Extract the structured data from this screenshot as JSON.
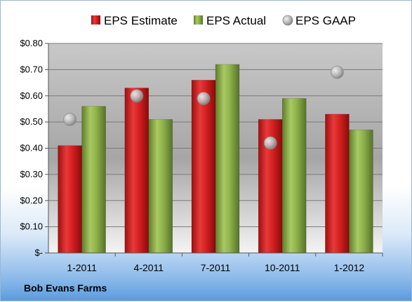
{
  "company": "Bob Evans Farms",
  "chart_data": {
    "type": "bar",
    "title": "",
    "xlabel": "",
    "ylabel": "",
    "categories": [
      "1-2011",
      "4-2011",
      "7-2011",
      "10-2011",
      "1-2012"
    ],
    "series": [
      {
        "name": "EPS Estimate",
        "kind": "bar",
        "color": "#d42020",
        "values": [
          0.41,
          0.63,
          0.66,
          0.51,
          0.53
        ]
      },
      {
        "name": "EPS Actual",
        "kind": "bar",
        "color": "#8fb24a",
        "values": [
          0.56,
          0.51,
          0.72,
          0.59,
          0.47
        ]
      },
      {
        "name": "EPS GAAP",
        "kind": "marker",
        "color": "#b8b8b8",
        "values": [
          0.51,
          0.6,
          0.59,
          0.42,
          0.69
        ]
      }
    ],
    "ylim": [
      0,
      0.8
    ],
    "yticks": [
      0,
      0.1,
      0.2,
      0.3,
      0.4,
      0.5,
      0.6,
      0.7,
      0.8
    ],
    "ytick_labels": [
      "$-",
      "$0.10",
      "$0.20",
      "$0.30",
      "$0.40",
      "$0.50",
      "$0.60",
      "$0.70",
      "$0.80"
    ],
    "grid": true,
    "legend_position": "top"
  }
}
